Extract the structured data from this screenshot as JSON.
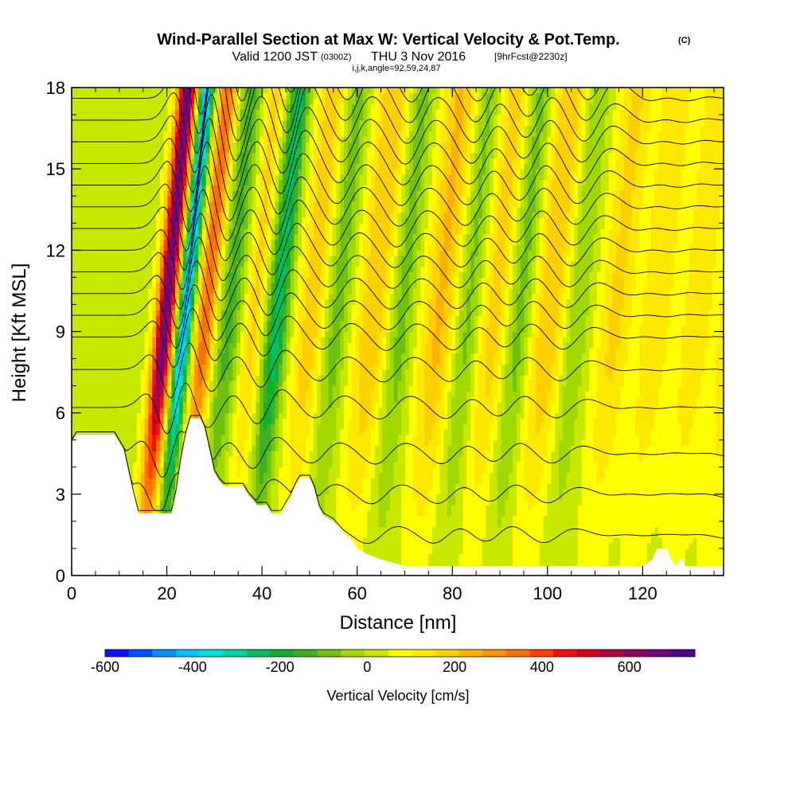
{
  "chart_data": {
    "type": "heatmap",
    "title": "Wind-Parallel Section at Max W: Vertical Velocity & Pot.Temp.",
    "copyright": "(C)",
    "subtitle_valid": "Valid 1200 JST",
    "subtitle_utc": "(0300Z)",
    "subtitle_date": "THU 3 Nov 2016",
    "subtitle_fcst": "[9hrFcst@2230z]",
    "subtitle_ijk": "i,j,k,angle=92,59,24,87",
    "xlabel": "Distance [nm]",
    "ylabel": "Height [Kft MSL]",
    "xlim": [
      0,
      137
    ],
    "ylim": [
      0,
      18
    ],
    "x_ticks": [
      "0",
      "20",
      "40",
      "60",
      "80",
      "100",
      "120"
    ],
    "y_ticks": [
      "0",
      "3",
      "6",
      "9",
      "12",
      "15",
      "18"
    ],
    "colorbar": {
      "label": "Vertical Velocity [cm/s]",
      "range": [
        -600,
        750
      ],
      "tick_labels": [
        "-600",
        "-400",
        "-200",
        "0",
        "200",
        "400",
        "600"
      ],
      "colors": [
        "#1010ff",
        "#0050ff",
        "#0090ff",
        "#00c0ff",
        "#00e0e0",
        "#00d0a0",
        "#00c060",
        "#10b030",
        "#40b020",
        "#70c010",
        "#a0d800",
        "#c8e800",
        "#ffff00",
        "#ffe800",
        "#ffd000",
        "#ffb000",
        "#ff9000",
        "#ff7000",
        "#ff4000",
        "#f01010",
        "#d00020",
        "#b00040",
        "#900060",
        "#700080",
        "#500090"
      ]
    },
    "waves": [
      {
        "x": 14.5,
        "w": 650,
        "width": 2.0
      },
      {
        "x": 18.5,
        "w": -480,
        "width": 1.6
      },
      {
        "x": 23.0,
        "w": 330,
        "width": 2.0
      },
      {
        "x": 28.0,
        "w": -160,
        "width": 2.5
      },
      {
        "x": 33.0,
        "w": 140,
        "width": 2.2
      },
      {
        "x": 38.0,
        "w": -280,
        "width": 2.2
      },
      {
        "x": 45.0,
        "w": 160,
        "width": 3.0
      },
      {
        "x": 50.5,
        "w": -120,
        "width": 2.5
      },
      {
        "x": 58.0,
        "w": 180,
        "width": 3.5
      },
      {
        "x": 64.0,
        "w": -120,
        "width": 2.5
      },
      {
        "x": 72.0,
        "w": 190,
        "width": 3.5
      },
      {
        "x": 78.0,
        "w": -110,
        "width": 2.5
      },
      {
        "x": 83.5,
        "w": 150,
        "width": 3.0
      },
      {
        "x": 89.0,
        "w": -120,
        "width": 2.5
      },
      {
        "x": 95.0,
        "w": 180,
        "width": 3.5
      },
      {
        "x": 101.0,
        "w": -90,
        "width": 2.5
      },
      {
        "x": 109.0,
        "w": 140,
        "width": 3.5
      },
      {
        "x": 117.5,
        "w": 120,
        "width": 3.5
      },
      {
        "x": 126.0,
        "w": 110,
        "width": 3.5
      },
      {
        "x": 134.0,
        "w": 120,
        "width": 3.5
      }
    ],
    "terrain": [
      [
        0,
        4.9
      ],
      [
        1,
        5.2
      ],
      [
        9,
        5.2
      ],
      [
        10,
        4.9
      ],
      [
        11,
        4.6
      ],
      [
        12,
        3.8
      ],
      [
        13,
        3.0
      ],
      [
        14,
        2.3
      ],
      [
        21,
        2.3
      ],
      [
        22,
        3.1
      ],
      [
        23,
        4.3
      ],
      [
        24,
        5.2
      ],
      [
        25,
        5.8
      ],
      [
        27,
        5.8
      ],
      [
        28,
        5.4
      ],
      [
        29,
        4.6
      ],
      [
        30,
        3.8
      ],
      [
        31,
        3.5
      ],
      [
        32,
        3.3
      ],
      [
        36,
        3.3
      ],
      [
        37,
        3.0
      ],
      [
        39,
        2.6
      ],
      [
        41,
        2.6
      ],
      [
        42,
        2.3
      ],
      [
        44,
        2.3
      ],
      [
        45,
        2.6
      ],
      [
        46,
        2.9
      ],
      [
        47,
        3.3
      ],
      [
        48,
        3.6
      ],
      [
        50,
        3.6
      ],
      [
        51,
        3.2
      ],
      [
        52,
        2.5
      ],
      [
        53,
        2.2
      ],
      [
        55,
        2.0
      ],
      [
        57,
        1.6
      ],
      [
        59,
        1.3
      ],
      [
        60,
        1.0
      ],
      [
        62,
        0.8
      ],
      [
        65,
        0.6
      ],
      [
        70,
        0.35
      ],
      [
        80,
        0.35
      ],
      [
        100,
        0.35
      ],
      [
        120,
        0.35
      ],
      [
        122,
        0.6
      ],
      [
        123,
        1.0
      ],
      [
        125,
        1.0
      ],
      [
        126,
        0.6
      ],
      [
        127,
        0.35
      ],
      [
        128,
        0.7
      ],
      [
        129,
        0.35
      ],
      [
        130,
        0.35
      ],
      [
        137,
        0.35
      ]
    ]
  }
}
